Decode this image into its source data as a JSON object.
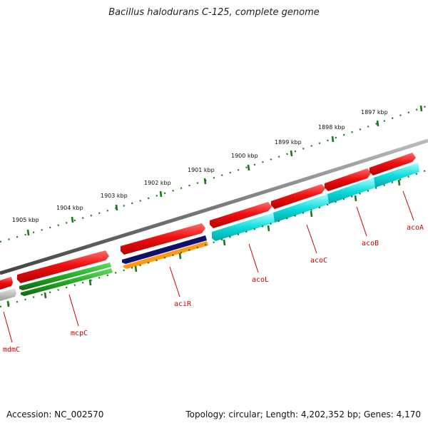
{
  "title": "Bacillus halodurans C-125, complete genome",
  "footer": {
    "accession": "Accession: NC_002570",
    "summary": "Topology: circular; Length: 4,202,352 bp; Genes: 4,170"
  },
  "colors": {
    "backbone": "#7a7a7a",
    "ticks": "#1a7a1a",
    "label": "#cc0000",
    "red_gene": "#ee1111",
    "cyan_gene": "#11dddd",
    "green_gene": "#22aa22",
    "navy_gene": "#10106a",
    "orange_gene": "#ff9911",
    "gray_gene": "#bbbbbb"
  },
  "kbp_labels": [
    "1905 kbp",
    "1904 kbp",
    "1903 kbp",
    "1902 kbp",
    "1901 kbp",
    "1900 kbp",
    "1899 kbp",
    "1898 kbp",
    "1897 kbp"
  ],
  "genes": [
    "mdmC",
    "mcpC",
    "aciR",
    "acoL",
    "acoC",
    "acoB",
    "acoA"
  ]
}
